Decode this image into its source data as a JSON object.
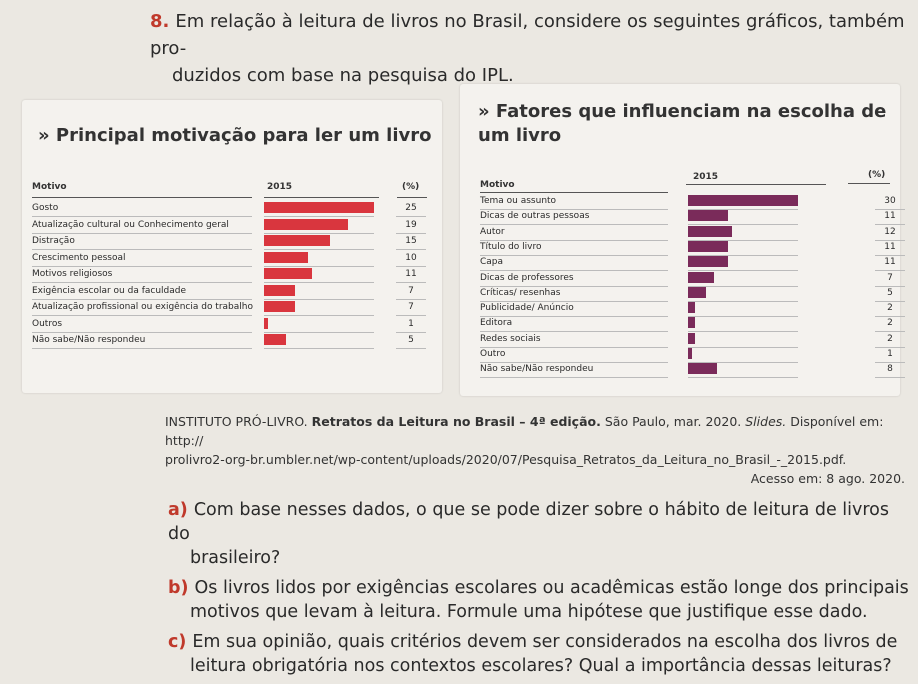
{
  "question": {
    "number": "8.",
    "line1": "Em relação à leitura de livros no Brasil, considere os seguintes gráficos, também pro-",
    "line2": "duzidos com base na pesquisa do IPL."
  },
  "chart_data": [
    {
      "type": "bar",
      "title": "» Principal motivação para ler um livro",
      "headers": {
        "category": "Motivo",
        "year": "2015",
        "pct": "(%)"
      },
      "categories": [
        "Gosto",
        "Atualização cultural ou Conhecimento geral",
        "Distração",
        "Crescimento pessoal",
        "Motivos religiosos",
        "Exigência escolar ou da faculdade",
        "Atualização profissional ou exigência do trabalho",
        "Outros",
        "Não sabe/Não respondeu"
      ],
      "values": [
        25,
        19,
        15,
        10,
        11,
        7,
        7,
        1,
        5
      ],
      "labels": [
        "25",
        "19",
        "15",
        "10",
        "11",
        "7",
        "7",
        "1",
        "5"
      ],
      "color": "#d9363e",
      "xlim": [
        0,
        25
      ]
    },
    {
      "type": "bar",
      "title": "» Fatores que influenciam na escolha de um livro",
      "headers": {
        "category": "Motivo",
        "year": "2015",
        "pct": "(%)"
      },
      "categories": [
        "Tema ou assunto",
        "Dicas de outras pessoas",
        "Autor",
        "Título do livro",
        "Capa",
        "Dicas de professores",
        "Críticas/ resenhas",
        "Publicidade/ Anúncio",
        "Editora",
        "Redes sociais",
        "Outro",
        "Não sabe/Não respondeu"
      ],
      "values": [
        30,
        11,
        12,
        11,
        11,
        7,
        5,
        2,
        2,
        2,
        1,
        8
      ],
      "labels": [
        "30",
        "11",
        "12",
        "11",
        "11",
        "7",
        "5",
        "2",
        "2",
        "2",
        "1",
        "8"
      ],
      "color": "#7a2b5a",
      "xlim": [
        0,
        30
      ]
    }
  ],
  "citation": {
    "org": "INSTITUTO PRÓ-LIVRO.",
    "title": "Retratos da Leitura no Brasil – 4ª edição.",
    "place": "São Paulo, mar. 2020.",
    "slides": "Slides.",
    "avail": "Disponível em: http://",
    "url": "prolivro2-org-br.umbler.net/wp-content/uploads/2020/07/Pesquisa_Retratos_da_Leitura_no_Brasil_-_2015.pdf.",
    "access": "Acesso em: 8 ago. 2020."
  },
  "items": [
    {
      "letter": "a)",
      "line1": "Com base nesses dados, o que se pode dizer sobre o hábito de leitura de livros do",
      "line2": "brasileiro?"
    },
    {
      "letter": "b)",
      "line1": "Os livros lidos por exigências escolares ou acadêmicas estão longe dos principais",
      "line2": "motivos que levam à leitura. Formule uma hipótese que justifique esse dado."
    },
    {
      "letter": "c)",
      "line1": "Em sua opinião, quais critérios devem ser considerados na escolha dos livros de",
      "line2": "leitura obrigatória nos contextos escolares? Qual a importância dessas leituras?"
    }
  ]
}
